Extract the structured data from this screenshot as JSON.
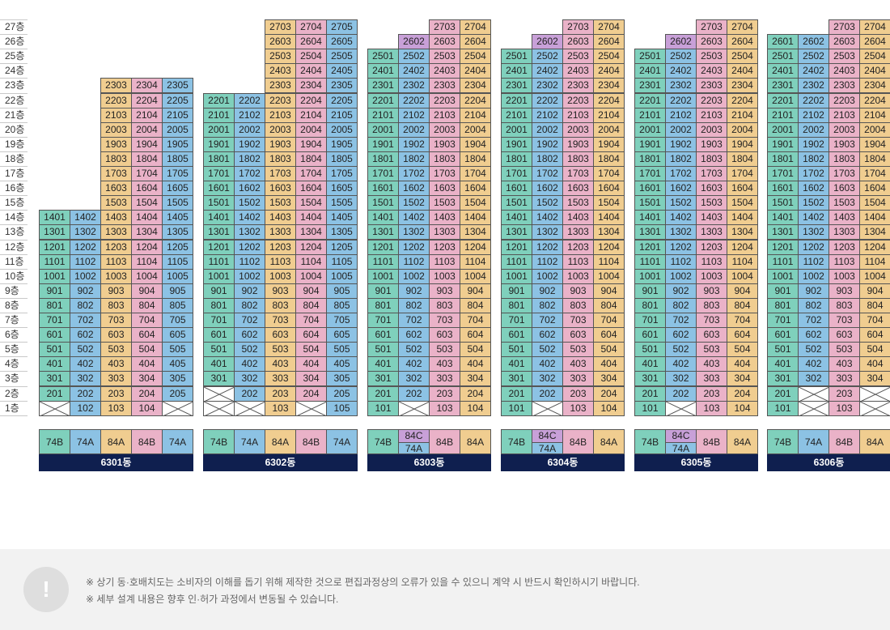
{
  "colors": {
    "74B": "#7fd0bc",
    "74A": "#8cc2e4",
    "84A": "#f0cd90",
    "84B": "#eab2c8",
    "84C": "#c8a0d8",
    "building_label_bg": "#0f1f4f"
  },
  "floors": [
    "1층",
    "2층",
    "3층",
    "4층",
    "5층",
    "6층",
    "7층",
    "8층",
    "9층",
    "10층",
    "11층",
    "12층",
    "13층",
    "14층",
    "15층",
    "16층",
    "17층",
    "18층",
    "19층",
    "20층",
    "21층",
    "22층",
    "23층",
    "24층",
    "25층",
    "26층",
    "27층"
  ],
  "buildings": [
    {
      "name": "6301동",
      "columns": [
        {
          "line": 1,
          "type": "74B",
          "top_floor": 14,
          "empty_floors": [
            1
          ]
        },
        {
          "line": 2,
          "type": "74A",
          "top_floor": 14,
          "empty_floors": []
        },
        {
          "line": 3,
          "type": "84A",
          "top_floor": 23,
          "empty_floors": []
        },
        {
          "line": 4,
          "type": "84B",
          "top_floor": 23,
          "empty_floors": []
        },
        {
          "line": 5,
          "type": "74A",
          "top_floor": 23,
          "empty_floors": [
            1
          ]
        }
      ],
      "type_labels": [
        [
          "74B"
        ],
        [
          "74A"
        ],
        [
          "84A"
        ],
        [
          "84B"
        ],
        [
          "74A"
        ]
      ]
    },
    {
      "name": "6302동",
      "columns": [
        {
          "line": 1,
          "type": "74B",
          "top_floor": 22,
          "empty_floors": [
            1,
            2
          ]
        },
        {
          "line": 2,
          "type": "74A",
          "top_floor": 22,
          "empty_floors": [
            1
          ]
        },
        {
          "line": 3,
          "type": "84A",
          "top_floor": 27,
          "empty_floors": []
        },
        {
          "line": 4,
          "type": "84B",
          "top_floor": 27,
          "empty_floors": [
            1
          ]
        },
        {
          "line": 5,
          "type": "74A",
          "top_floor": 27,
          "empty_floors": []
        }
      ],
      "type_labels": [
        [
          "74B"
        ],
        [
          "74A"
        ],
        [
          "84A"
        ],
        [
          "84B"
        ],
        [
          "74A"
        ]
      ]
    },
    {
      "name": "6303동",
      "columns": [
        {
          "line": 1,
          "type": "74B",
          "top_floor": 25,
          "empty_floors": []
        },
        {
          "line": 2,
          "type": "74A",
          "top_floor": 26,
          "empty_floors": [
            1
          ],
          "override": {
            "26": "84C"
          }
        },
        {
          "line": 3,
          "type": "84B",
          "top_floor": 27,
          "empty_floors": []
        },
        {
          "line": 4,
          "type": "84A",
          "top_floor": 27,
          "empty_floors": []
        }
      ],
      "type_labels": [
        [
          "74B"
        ],
        [
          "84C",
          "74A"
        ],
        [
          "84B"
        ],
        [
          "84A"
        ]
      ]
    },
    {
      "name": "6304동",
      "columns": [
        {
          "line": 1,
          "type": "74B",
          "top_floor": 25,
          "empty_floors": []
        },
        {
          "line": 2,
          "type": "74A",
          "top_floor": 26,
          "empty_floors": [
            1
          ],
          "override": {
            "26": "84C"
          }
        },
        {
          "line": 3,
          "type": "84B",
          "top_floor": 27,
          "empty_floors": []
        },
        {
          "line": 4,
          "type": "84A",
          "top_floor": 27,
          "empty_floors": []
        }
      ],
      "type_labels": [
        [
          "74B"
        ],
        [
          "84C",
          "74A"
        ],
        [
          "84B"
        ],
        [
          "84A"
        ]
      ]
    },
    {
      "name": "6305동",
      "columns": [
        {
          "line": 1,
          "type": "74B",
          "top_floor": 25,
          "empty_floors": []
        },
        {
          "line": 2,
          "type": "74A",
          "top_floor": 26,
          "empty_floors": [
            1
          ],
          "override": {
            "26": "84C"
          }
        },
        {
          "line": 3,
          "type": "84B",
          "top_floor": 27,
          "empty_floors": []
        },
        {
          "line": 4,
          "type": "84A",
          "top_floor": 27,
          "empty_floors": []
        }
      ],
      "type_labels": [
        [
          "74B"
        ],
        [
          "84C",
          "74A"
        ],
        [
          "84B"
        ],
        [
          "84A"
        ]
      ]
    },
    {
      "name": "6306동",
      "columns": [
        {
          "line": 1,
          "type": "74B",
          "top_floor": 26,
          "empty_floors": []
        },
        {
          "line": 2,
          "type": "74A",
          "top_floor": 26,
          "empty_floors": [
            1,
            2
          ]
        },
        {
          "line": 3,
          "type": "84B",
          "top_floor": 27,
          "empty_floors": []
        },
        {
          "line": 4,
          "type": "84A",
          "top_floor": 27,
          "empty_floors": [
            1,
            2
          ]
        }
      ],
      "type_labels": [
        [
          "74B"
        ],
        [
          "74A"
        ],
        [
          "84B"
        ],
        [
          "84A"
        ]
      ]
    }
  ],
  "notice": {
    "icon": "exclamation-icon",
    "icon_text": "!",
    "lines": [
      "※ 상기 동·호배치도는 소비자의 이해를 돕기 위해 제작한 것으로 편집과정상의 오류가 있을 수 있으니 계약 시 반드시 확인하시기 바랍니다.",
      "※ 세부 설계 내용은 향후 인·허가 과정에서 변동될 수 있습니다."
    ]
  }
}
